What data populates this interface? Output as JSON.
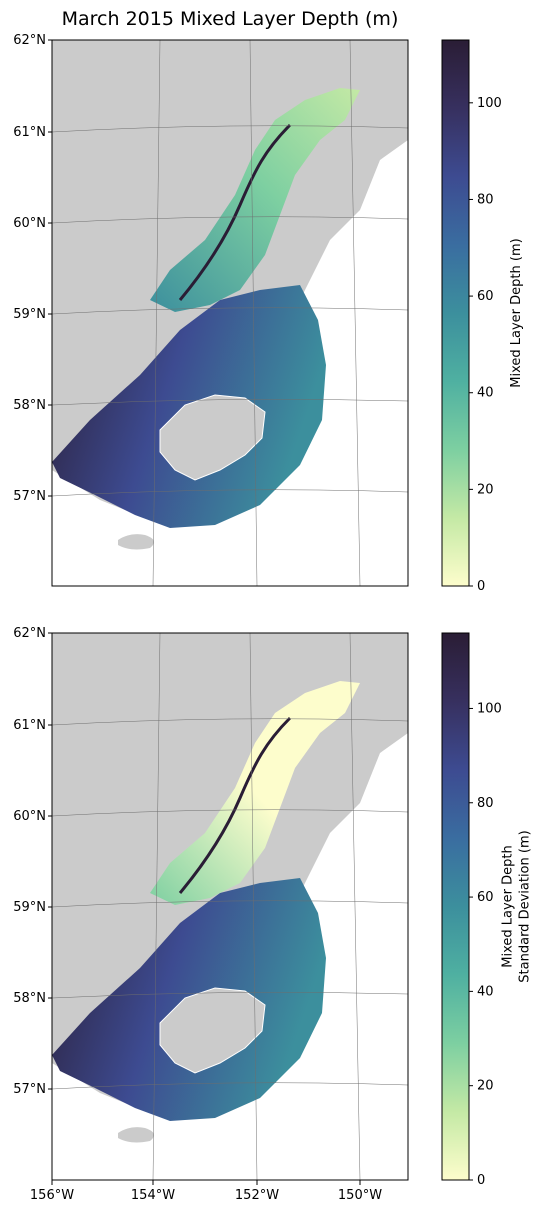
{
  "title": "March 2015 Mixed Layer Depth (m)",
  "lat_labels": [
    "62°N",
    "61°N",
    "60°N",
    "59°N",
    "58°N",
    "57°N"
  ],
  "lon_labels": [
    "156°W",
    "154°W",
    "152°W",
    "150°W"
  ],
  "panels": [
    {
      "name": "mean",
      "colorbar": {
        "label_lines": [
          "Mixed Layer Depth (m)"
        ],
        "min": 0,
        "max": 113,
        "ticks": [
          0,
          20,
          40,
          60,
          80,
          100
        ],
        "tick_labels": [
          "0",
          "20",
          "40",
          "60",
          "80",
          "100"
        ]
      }
    },
    {
      "name": "stddev",
      "colorbar": {
        "label_lines": [
          "Mixed Layer Depth",
          "Standard Deviation (m)"
        ],
        "min": 0,
        "max": 116,
        "ticks": [
          0,
          20,
          40,
          60,
          80,
          100
        ],
        "tick_labels": [
          "0",
          "20",
          "40",
          "60",
          "80",
          "100"
        ]
      }
    }
  ],
  "colors": {
    "land": "#cbcbcb",
    "ocean_deep": "#2b1f3a",
    "ocean_mid": "#3f8f9c",
    "ocean_shallow": "#fbfbc4",
    "grid": "#6e6e6e"
  },
  "colormap_stops": [
    "#fdfdcc",
    "#c4e9a5",
    "#7dcfa1",
    "#4fb0a1",
    "#3c8f9d",
    "#3a6da0",
    "#3d4b91",
    "#37305f",
    "#2a1d35"
  ]
}
